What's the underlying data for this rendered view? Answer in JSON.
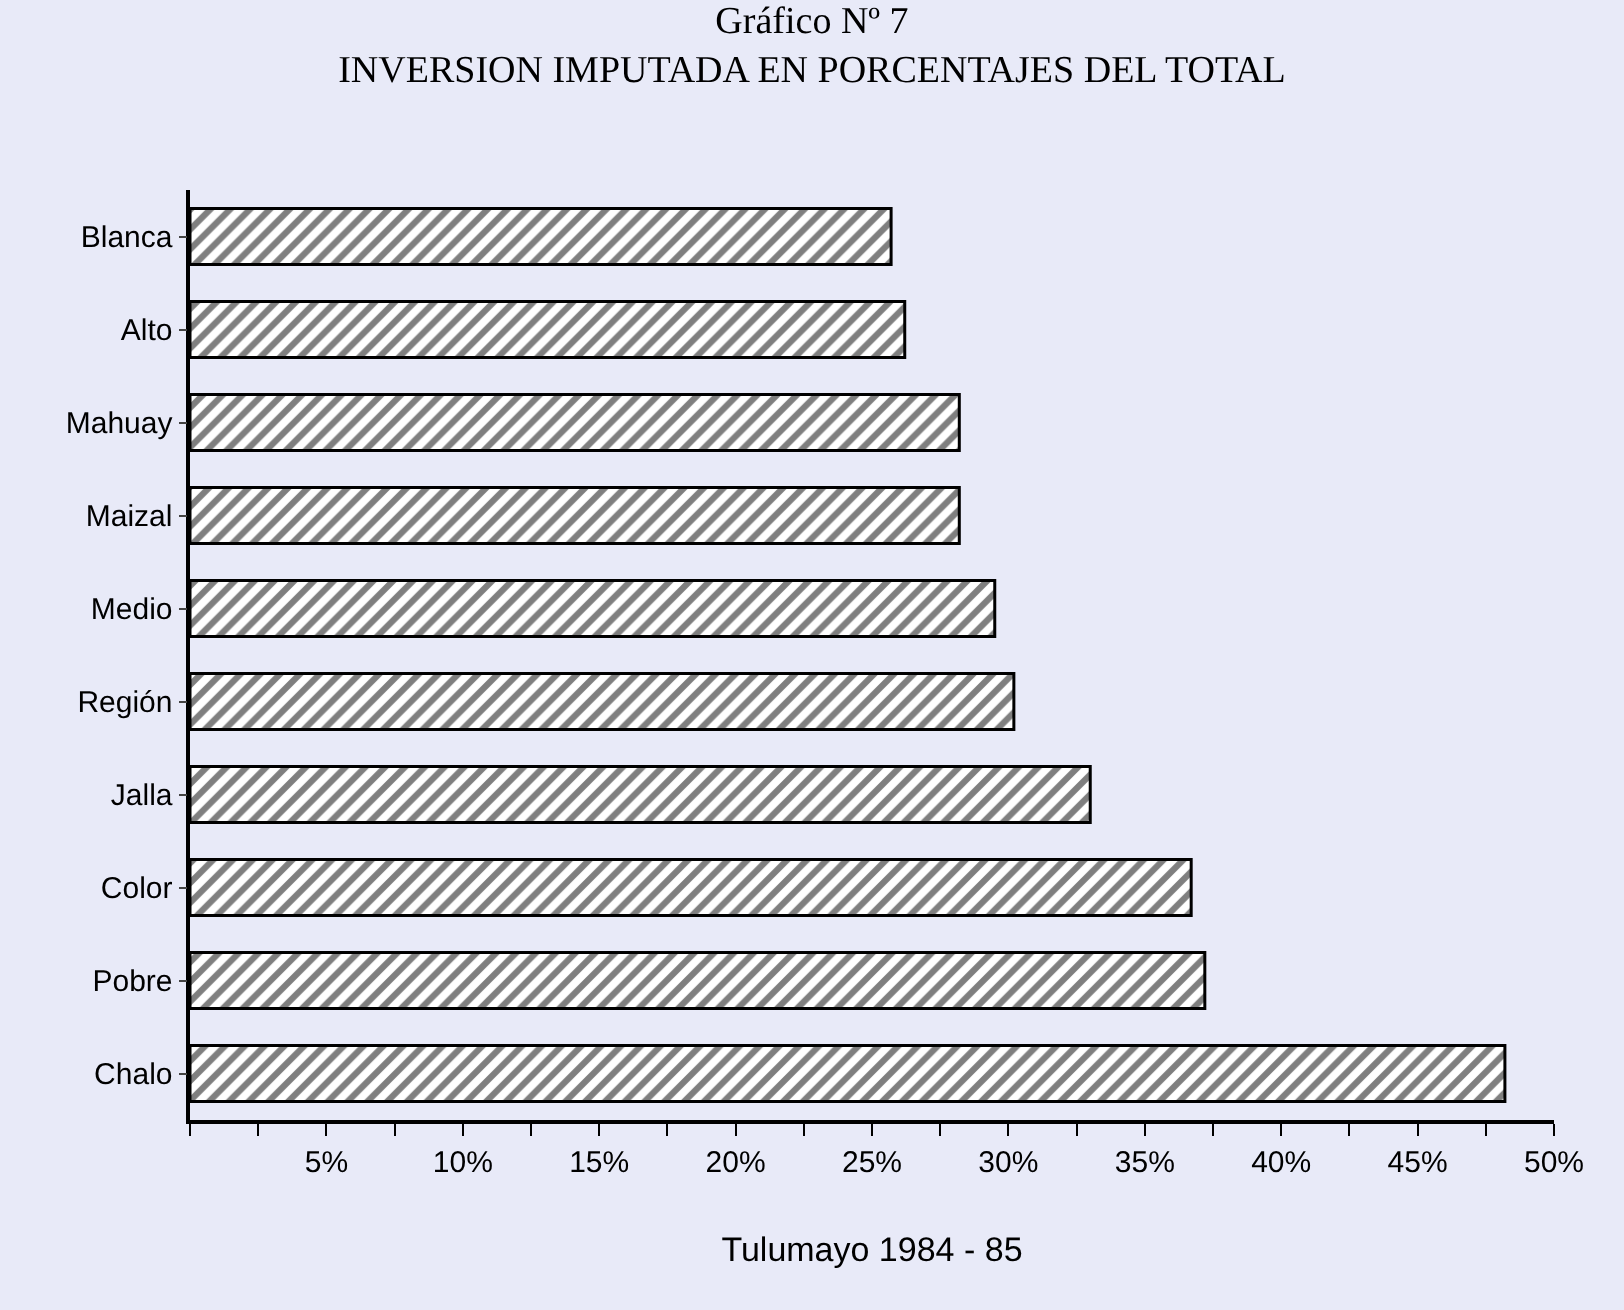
{
  "chart_data": {
    "type": "bar",
    "orientation": "horizontal",
    "title": "Gráfico Nº 7",
    "subtitle": "INVERSION IMPUTADA EN PORCENTAJES DEL TOTAL",
    "xlabel": "Tulumayo 1984 - 85",
    "categories": [
      "Blanca",
      "Alto",
      "Mahuay",
      "Maizal",
      "Medio",
      "Región",
      "Jalla",
      "Color",
      "Pobre",
      "Chalo"
    ],
    "values": [
      25.7,
      26.2,
      28.2,
      28.2,
      29.5,
      30.2,
      33,
      36.7,
      37.2,
      48.2
    ],
    "color": "#000000",
    "xlim": [
      0,
      50
    ],
    "xticks": [
      {
        "value": 0,
        "label": null
      },
      {
        "value": 2.5,
        "label": null
      },
      {
        "value": 5,
        "label": "5%"
      },
      {
        "value": 7.5,
        "label": null
      },
      {
        "value": 10,
        "label": "10%"
      },
      {
        "value": 12.5,
        "label": null
      },
      {
        "value": 15,
        "label": "15%"
      },
      {
        "value": 17.5,
        "label": null
      },
      {
        "value": 20,
        "label": "20%"
      },
      {
        "value": 22.5,
        "label": null
      },
      {
        "value": 25,
        "label": "25%"
      },
      {
        "value": 27.5,
        "label": null
      },
      {
        "value": 30,
        "label": "30%"
      },
      {
        "value": 32.5,
        "label": null
      },
      {
        "value": 35,
        "label": "35%"
      },
      {
        "value": 37.5,
        "label": null
      },
      {
        "value": 40,
        "label": "40%"
      },
      {
        "value": 42.5,
        "label": null
      },
      {
        "value": 45,
        "label": "45%"
      },
      {
        "value": 47.5,
        "label": null
      },
      {
        "value": 50,
        "label": "50%"
      }
    ],
    "grid": false,
    "legend": false
  }
}
